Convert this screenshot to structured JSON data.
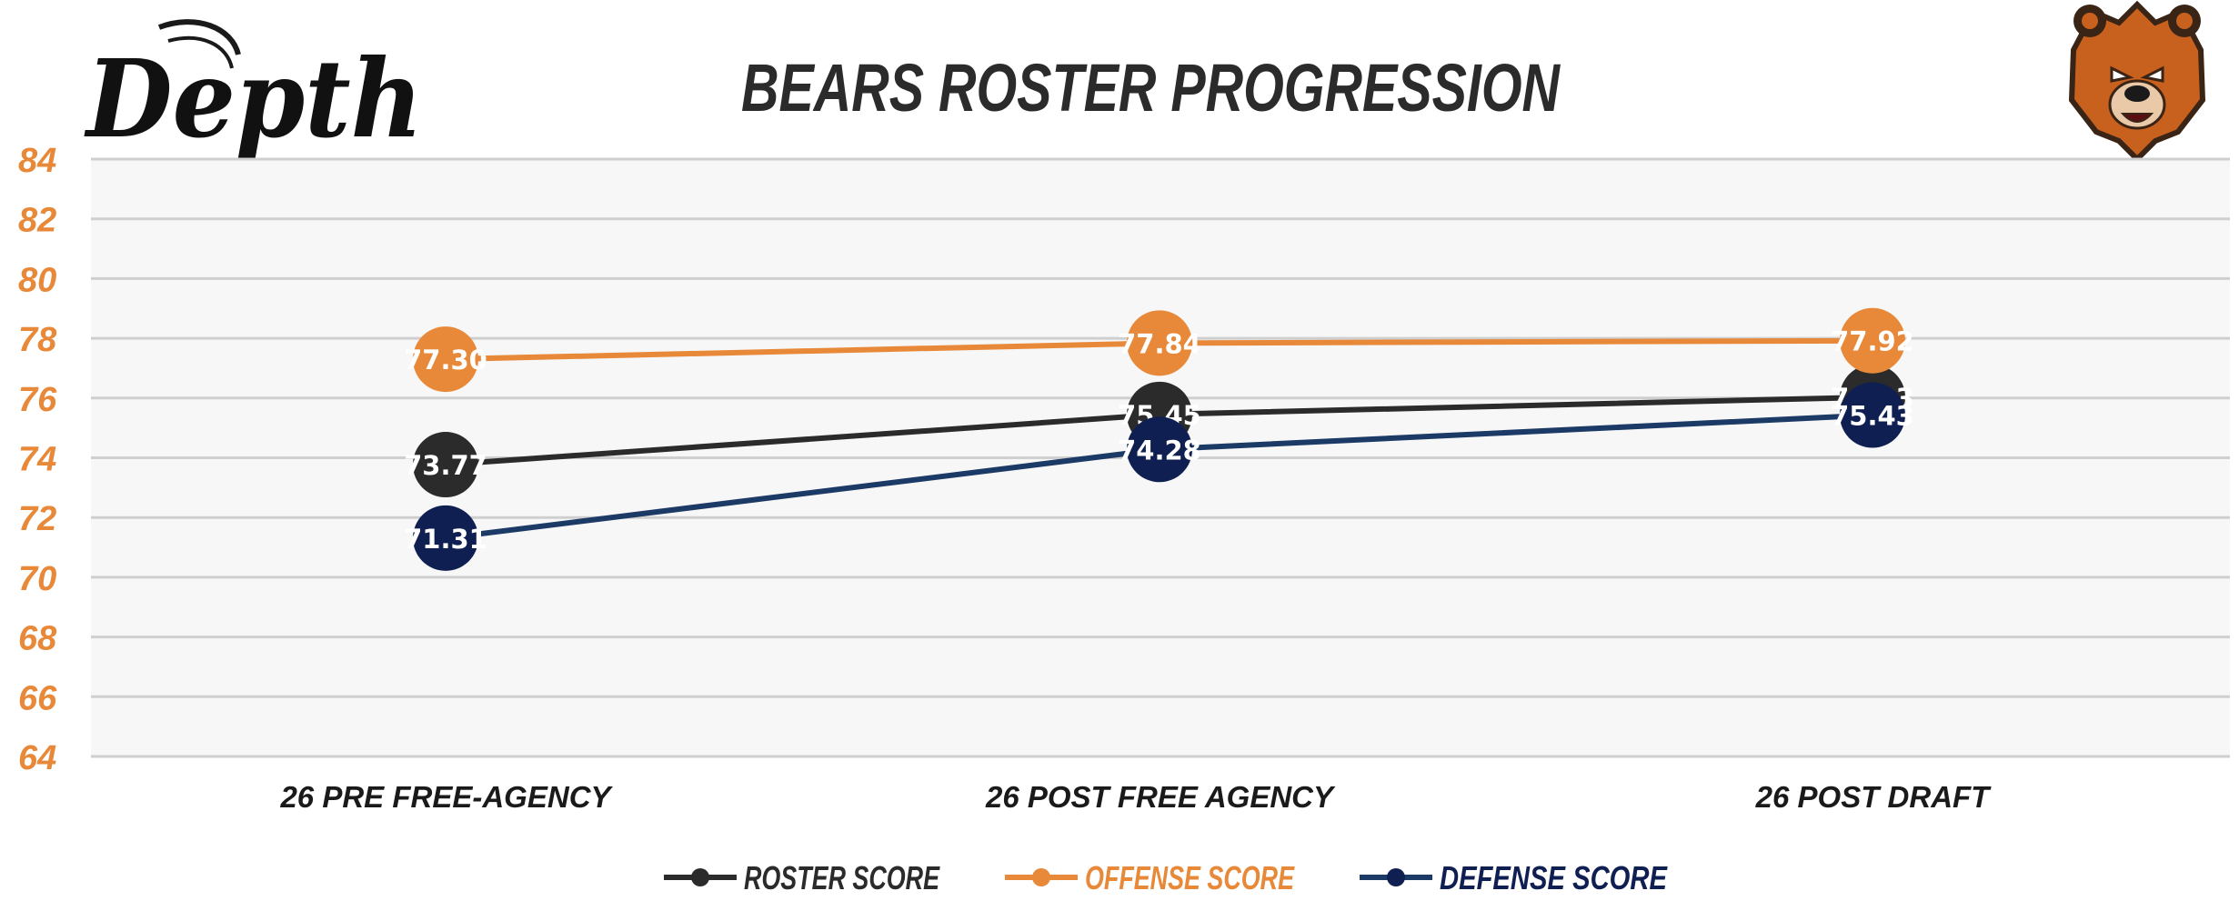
{
  "logo": {
    "text": "Depth"
  },
  "colors": {
    "roster": "#2b2b2b",
    "offense": "#e8893a",
    "defense": "#0f1f52",
    "defense_line": "#1c3a66",
    "tick": "#e8893a",
    "grid": "#cfcfcf",
    "plot_bg": "#f7f7f7",
    "title": "#2b2b2b",
    "bear_fur": "#c8611e",
    "bear_dark": "#3a2416"
  },
  "chart_data": {
    "type": "line",
    "title": "BEARS ROSTER PROGRESSION",
    "xlabel": "",
    "ylabel": "",
    "ylim": [
      64,
      84
    ],
    "yticks": [
      84,
      82,
      80,
      78,
      76,
      74,
      72,
      70,
      68,
      66,
      64
    ],
    "grid": true,
    "legend_position": "bottom",
    "categories": [
      "26 PRE FREE-AGENCY",
      "26 POST FREE AGENCY",
      "26 POST DRAFT"
    ],
    "series": [
      {
        "name": "ROSTER SCORE",
        "color": "#2b2b2b",
        "values": [
          73.77,
          75.45,
          76.03
        ],
        "labels": [
          "73.77",
          "75.45",
          "76.03"
        ]
      },
      {
        "name": "OFFENSE SCORE",
        "color": "#e8893a",
        "values": [
          77.3,
          77.84,
          77.92
        ],
        "labels": [
          "77.30",
          "77.84",
          "77.92"
        ]
      },
      {
        "name": "DEFENSE SCORE",
        "color": "#0f1f52",
        "values": [
          71.31,
          74.28,
          75.43
        ],
        "labels": [
          "71.31",
          "74.28",
          "75.43"
        ]
      }
    ]
  }
}
